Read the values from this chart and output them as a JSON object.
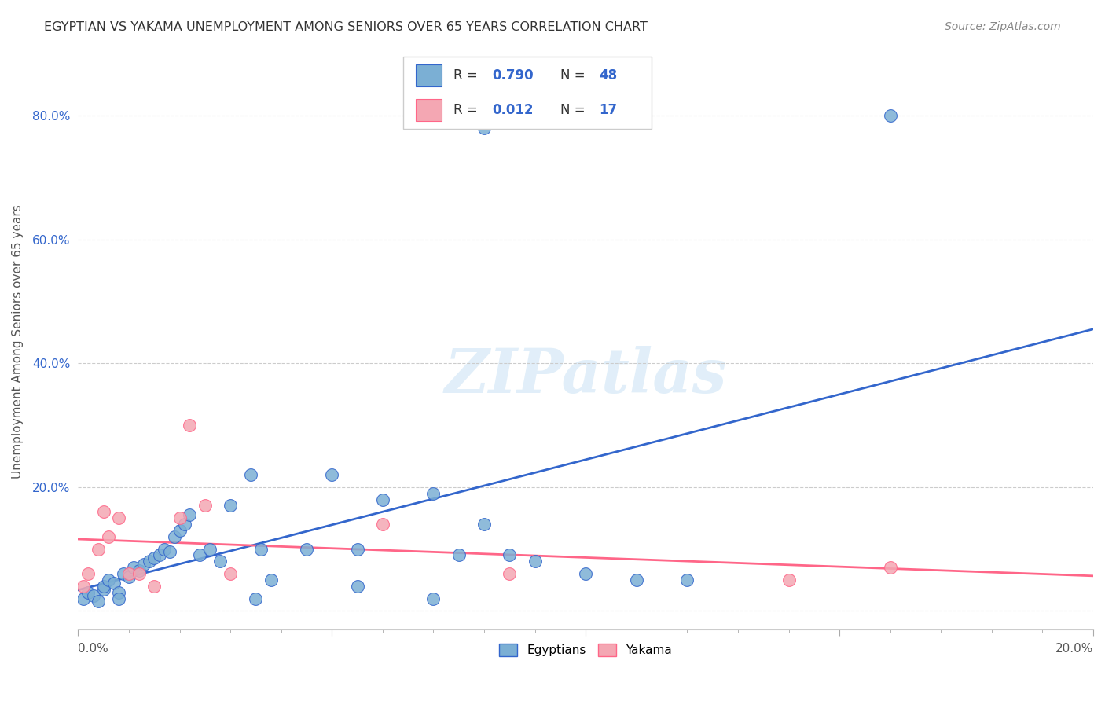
{
  "title": "EGYPTIAN VS YAKAMA UNEMPLOYMENT AMONG SENIORS OVER 65 YEARS CORRELATION CHART",
  "source": "Source: ZipAtlas.com",
  "ylabel": "Unemployment Among Seniors over 65 years",
  "xlim": [
    0.0,
    0.2
  ],
  "ylim": [
    -0.03,
    0.9
  ],
  "background_color": "#ffffff",
  "color_egyptian": "#7BAFD4",
  "color_yakama": "#F4A7B3",
  "line_color_egyptian": "#3366CC",
  "line_color_yakama": "#FF6688",
  "grid_color": "#cccccc",
  "title_color": "#333333",
  "legend_r1_label": "R = ",
  "legend_r1_val": "0.790",
  "legend_n1_label": "N = ",
  "legend_n1_val": "48",
  "legend_r2_label": "R = ",
  "legend_r2_val": "0.012",
  "legend_n2_label": "N = ",
  "legend_n2_val": "17",
  "egyptian_x": [
    0.001,
    0.002,
    0.003,
    0.004,
    0.005,
    0.005,
    0.006,
    0.007,
    0.008,
    0.008,
    0.009,
    0.01,
    0.011,
    0.012,
    0.013,
    0.014,
    0.015,
    0.016,
    0.017,
    0.018,
    0.019,
    0.02,
    0.021,
    0.022,
    0.024,
    0.026,
    0.028,
    0.03,
    0.035,
    0.034,
    0.036,
    0.038,
    0.055,
    0.045,
    0.05,
    0.055,
    0.06,
    0.07,
    0.07,
    0.075,
    0.08,
    0.085,
    0.09,
    0.1,
    0.11,
    0.12,
    0.08,
    0.16
  ],
  "egyptian_y": [
    0.02,
    0.03,
    0.025,
    0.015,
    0.035,
    0.04,
    0.05,
    0.045,
    0.03,
    0.02,
    0.06,
    0.055,
    0.07,
    0.065,
    0.075,
    0.08,
    0.085,
    0.09,
    0.1,
    0.095,
    0.12,
    0.13,
    0.14,
    0.155,
    0.09,
    0.1,
    0.08,
    0.17,
    0.02,
    0.22,
    0.1,
    0.05,
    0.04,
    0.1,
    0.22,
    0.1,
    0.18,
    0.19,
    0.02,
    0.09,
    0.14,
    0.09,
    0.08,
    0.06,
    0.05,
    0.05,
    0.78,
    0.8
  ],
  "yakama_x": [
    0.001,
    0.002,
    0.004,
    0.005,
    0.006,
    0.008,
    0.01,
    0.012,
    0.015,
    0.02,
    0.022,
    0.025,
    0.03,
    0.06,
    0.085,
    0.14,
    0.16
  ],
  "yakama_y": [
    0.04,
    0.06,
    0.1,
    0.16,
    0.12,
    0.15,
    0.06,
    0.06,
    0.04,
    0.15,
    0.3,
    0.17,
    0.06,
    0.14,
    0.06,
    0.05,
    0.07
  ]
}
